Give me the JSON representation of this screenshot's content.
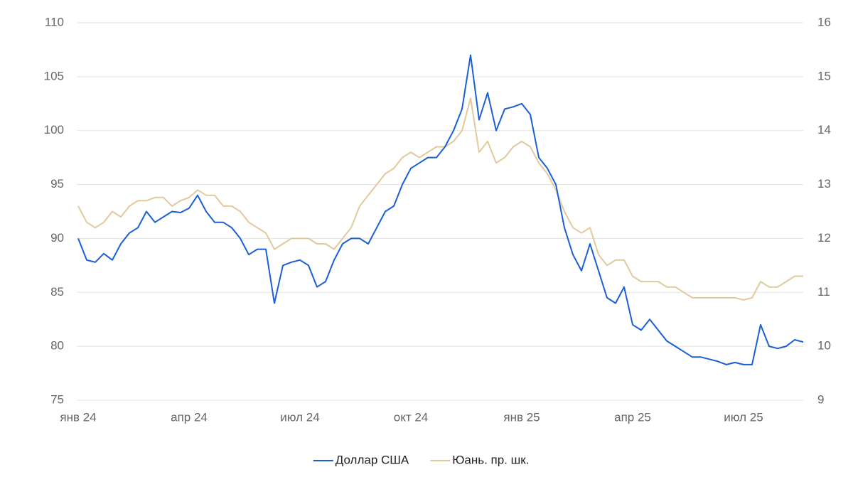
{
  "chart_data": {
    "type": "line",
    "categories": [
      "янв 24",
      null,
      null,
      null,
      null,
      null,
      null,
      null,
      null,
      null,
      null,
      null,
      null,
      "апр 24",
      null,
      null,
      null,
      null,
      null,
      null,
      null,
      null,
      null,
      null,
      null,
      null,
      "июл 24",
      null,
      null,
      null,
      null,
      null,
      null,
      null,
      null,
      null,
      null,
      null,
      null,
      "окт 24",
      null,
      null,
      null,
      null,
      null,
      null,
      null,
      null,
      null,
      null,
      null,
      null,
      "янв 25",
      null,
      null,
      null,
      null,
      null,
      null,
      null,
      null,
      null,
      null,
      null,
      null,
      "апр 25",
      null,
      null,
      null,
      null,
      null,
      null,
      null,
      null,
      null,
      null,
      null,
      null,
      "июл 25",
      null,
      null,
      null,
      null,
      null,
      null,
      null
    ],
    "series": [
      {
        "name": "Доллар США",
        "color": "#1a5fd6",
        "values": [
          90.0,
          88.0,
          87.8,
          88.6,
          88.0,
          89.5,
          90.5,
          91.0,
          92.5,
          91.5,
          92.0,
          92.5,
          92.4,
          92.8,
          94.0,
          92.5,
          91.5,
          91.5,
          91.0,
          90.0,
          88.5,
          89.0,
          89.0,
          84.0,
          87.5,
          87.8,
          88.0,
          87.5,
          85.5,
          86.0,
          88.0,
          89.5,
          90.0,
          90.0,
          89.5,
          91.0,
          92.5,
          93.0,
          95.0,
          96.5,
          97.0,
          97.5,
          97.5,
          98.5,
          100.0,
          102.0,
          107.0,
          101.0,
          103.5,
          100.0,
          102.0,
          102.2,
          102.5,
          101.5,
          97.5,
          96.5,
          95.0,
          91.0,
          88.5,
          87.0,
          89.5,
          87.0,
          84.5,
          84.0,
          85.5,
          82.0,
          81.5,
          82.5,
          81.5,
          80.5,
          80.0,
          79.5,
          79.0,
          79.0,
          78.8,
          78.6,
          78.3,
          78.5,
          78.3,
          78.3,
          82.0,
          80.0,
          79.8,
          80.0,
          80.6,
          80.4
        ]
      },
      {
        "name": "Юань. пр. шк.",
        "color": "#e2c99c",
        "axis": "y2",
        "values": [
          12.6,
          12.3,
          12.2,
          12.3,
          12.5,
          12.4,
          12.6,
          12.7,
          12.7,
          12.76,
          12.76,
          12.6,
          12.7,
          12.76,
          12.9,
          12.8,
          12.8,
          12.6,
          12.6,
          12.5,
          12.3,
          12.2,
          12.1,
          11.8,
          11.9,
          12.0,
          12.0,
          12.0,
          11.9,
          11.9,
          11.8,
          12.0,
          12.2,
          12.6,
          12.8,
          13.0,
          13.2,
          13.3,
          13.5,
          13.6,
          13.5,
          13.6,
          13.7,
          13.7,
          13.8,
          14.0,
          14.6,
          13.6,
          13.8,
          13.4,
          13.5,
          13.7,
          13.8,
          13.7,
          13.4,
          13.2,
          12.9,
          12.5,
          12.2,
          12.1,
          12.2,
          11.7,
          11.5,
          11.6,
          11.6,
          11.3,
          11.2,
          11.2,
          11.2,
          11.1,
          11.1,
          11.0,
          10.9,
          10.9,
          10.9,
          10.9,
          10.9,
          10.9,
          10.86,
          10.9,
          11.2,
          11.1,
          11.1,
          11.2,
          11.3,
          11.3
        ]
      }
    ],
    "ylim": [
      75,
      110
    ],
    "yticks": [
      75,
      80,
      85,
      90,
      95,
      100,
      105,
      110
    ],
    "y2lim": [
      9,
      16
    ],
    "y2ticks": [
      9,
      10,
      11,
      12,
      13,
      14,
      15,
      16
    ],
    "grid": true,
    "legend": "bottom"
  }
}
